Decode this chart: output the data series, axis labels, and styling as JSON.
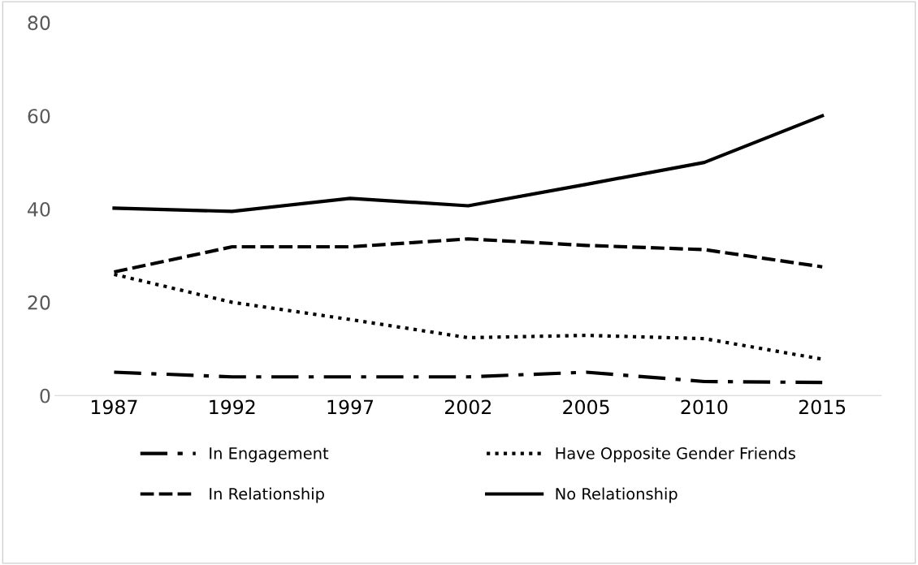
{
  "chart_data": {
    "type": "line",
    "categories": [
      "1987",
      "1992",
      "1997",
      "2002",
      "2005",
      "2010",
      "2015"
    ],
    "ylim": [
      0,
      80
    ],
    "yticks": [
      0,
      20,
      40,
      60,
      80
    ],
    "grid": false,
    "legend": "bottom",
    "marker": "none",
    "series": [
      {
        "name": "In Engagement",
        "color": "#000000",
        "line_style": "dashdot",
        "values": [
          5,
          4,
          4,
          4,
          5,
          3,
          2.8
        ]
      },
      {
        "name": "In Relationship",
        "color": "#000000",
        "line_style": "dashed",
        "values": [
          26.5,
          31.9,
          31.9,
          33.6,
          32.2,
          31.3,
          27.6
        ]
      },
      {
        "name": "Have Opposite Gender Friends",
        "color": "#000000",
        "line_style": "dotted",
        "values": [
          26,
          20,
          16.3,
          12.4,
          12.9,
          12.2,
          7.8
        ]
      },
      {
        "name": "No Relationship",
        "color": "#000000",
        "line_style": "solid",
        "values": [
          40.2,
          39.5,
          42.3,
          40.7,
          45.3,
          50,
          60
        ]
      }
    ]
  }
}
